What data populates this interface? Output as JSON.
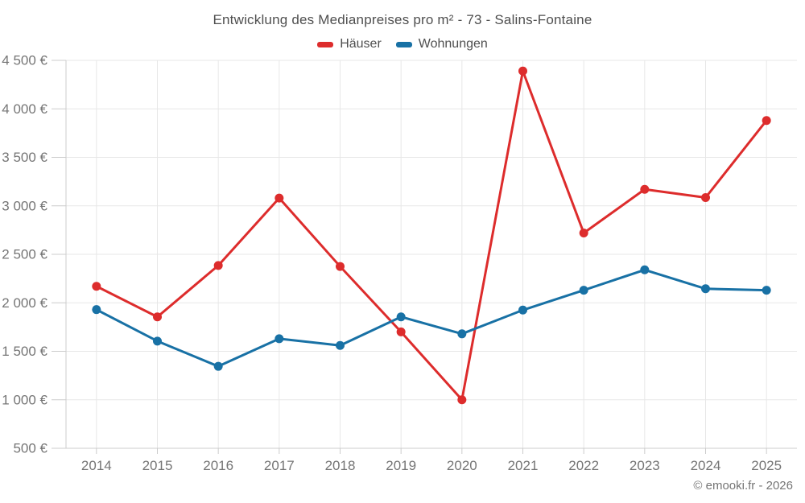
{
  "title": "Entwicklung des Medianpreises pro m² - 73 - Salins-Fontaine",
  "copyright": "© emooki.fr - 2026",
  "colors": {
    "hauser_red": "#dd2c2c",
    "wohnungen_blue": "#1871a5",
    "grid": "#e7e7e7",
    "axis": "#cccccc",
    "axis_text": "#757575",
    "title_text": "#4f4f4f"
  },
  "chart_data": {
    "type": "line",
    "categories": [
      "2014",
      "2015",
      "2016",
      "2017",
      "2018",
      "2019",
      "2020",
      "2021",
      "2022",
      "2023",
      "2024",
      "2025"
    ],
    "series": [
      {
        "name": "Häuser",
        "color": "#dd2c2c",
        "values": [
          2170,
          1855,
          2385,
          3080,
          2375,
          1700,
          1000,
          4390,
          2720,
          3170,
          3085,
          3880
        ]
      },
      {
        "name": "Wohnungen",
        "color": "#1871a5",
        "values": [
          1930,
          1605,
          1345,
          1630,
          1560,
          1855,
          1680,
          1925,
          2130,
          2340,
          2145,
          2130
        ]
      }
    ],
    "title": "Entwicklung des Medianpreises pro m² - 73 - Salins-Fontaine",
    "xlabel": "",
    "ylabel": "",
    "ylim": [
      500,
      4500
    ],
    "yticks": [
      500,
      1000,
      1500,
      2000,
      2500,
      3000,
      3500,
      4000,
      4500
    ],
    "ytick_labels": [
      "500 €",
      "1 000 €",
      "1 500 €",
      "2 000 €",
      "2 500 €",
      "3 000 €",
      "3 500 €",
      "4 000 €",
      "4 500 €"
    ],
    "grid": true,
    "legend_position": "top"
  }
}
